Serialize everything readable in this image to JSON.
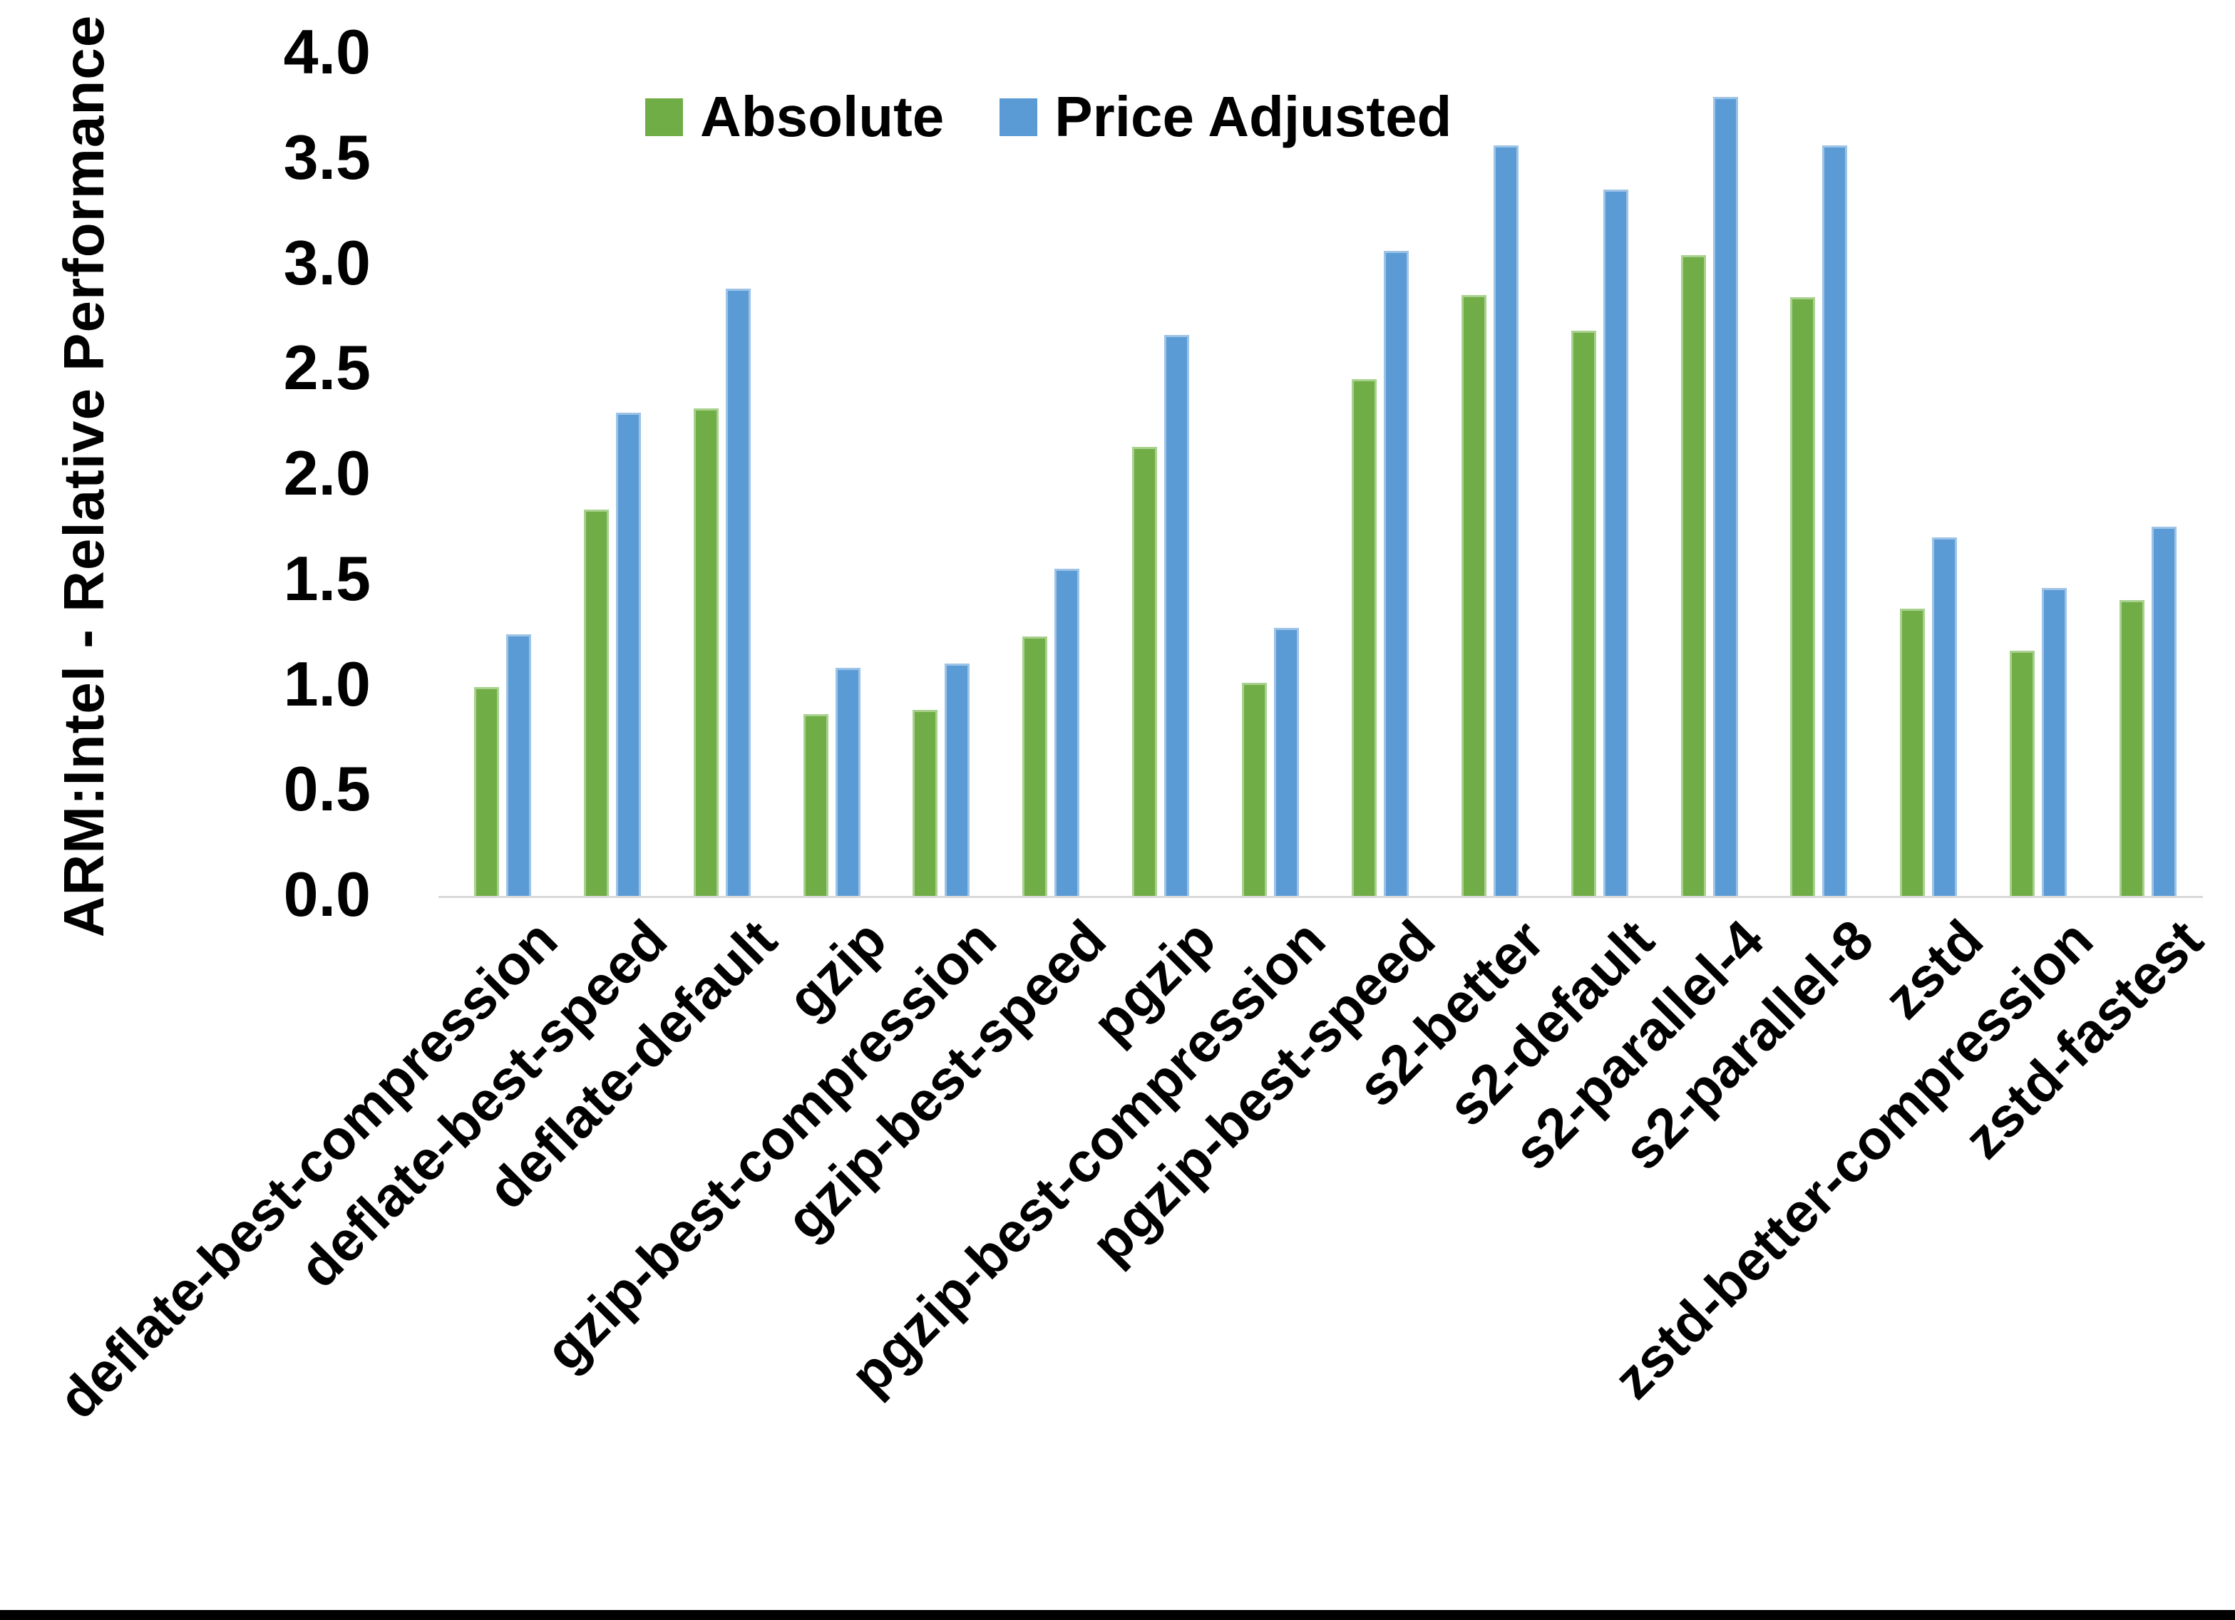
{
  "chart_data": {
    "type": "bar",
    "title": "",
    "xlabel": "",
    "ylabel": "ARM:Intel - Relative Performance",
    "ylim": [
      0.0,
      4.0
    ],
    "ytick_labels": [
      "0.0",
      "0.5",
      "1.0",
      "1.5",
      "2.0",
      "2.5",
      "3.0",
      "3.5",
      "4.0"
    ],
    "grid": false,
    "legend_position": "top-center",
    "categories": [
      "deflate-best-compression",
      "deflate-best-speed",
      "deflate-default",
      "gzip",
      "gzip-best-compression",
      "gzip-best-speed",
      "pgzip",
      "pgzip-best-compression",
      "pgzip-best-speed",
      "s2-better",
      "s2-default",
      "s2-parallel-4",
      "s2-parallel-8",
      "zstd",
      "zstd-better-compression",
      "zstd-fastest"
    ],
    "series": [
      {
        "name": "Absolute",
        "color": "#70AD47",
        "border_color": "#A9D18E",
        "values": [
          1.0,
          1.84,
          2.32,
          0.87,
          0.89,
          1.24,
          2.14,
          1.02,
          2.46,
          2.86,
          2.69,
          3.05,
          2.85,
          1.37,
          1.17,
          1.41
        ]
      },
      {
        "name": "Price Adjusted",
        "color": "#5B9BD5",
        "border_color": "#9DC3E6",
        "values": [
          1.25,
          2.3,
          2.89,
          1.09,
          1.11,
          1.56,
          2.67,
          1.28,
          3.07,
          3.57,
          3.36,
          3.8,
          3.57,
          1.71,
          1.47,
          1.76
        ]
      }
    ],
    "colors": {
      "axis_line": "#d9d9d9",
      "text": "#000000",
      "background": "#ffffff",
      "bottom_border": "#000000"
    }
  }
}
